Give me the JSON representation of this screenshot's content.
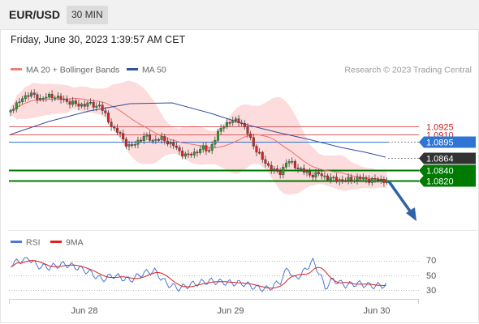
{
  "header": {
    "pair": "EUR/USD",
    "timeframe": "30 MIN"
  },
  "datetime": "Friday, June 30, 2023 1:39:57 AM CET",
  "legend": {
    "ma20": "MA 20 + Bollinger Bands",
    "ma50": "MA 50",
    "copyright": "Research © 2023 Trading Central"
  },
  "rsi_legend": {
    "rsi": "RSI",
    "ma9": "9MA"
  },
  "colors": {
    "up": "#2ca02c",
    "down": "#e02020",
    "resistance": "#e06060",
    "ma50": "#3050a0",
    "blue_tag": "#2e75d6",
    "green": "#007a00",
    "dark": "#333333",
    "bands": "#fbd6d6",
    "arrow": "#2f62a6"
  },
  "levels": [
    {
      "value": 1.0925,
      "label": "1.0925",
      "kind": "resistance"
    },
    {
      "value": 1.091,
      "label": "1.0910",
      "kind": "resistance"
    },
    {
      "value": 1.0895,
      "label": "1.0895",
      "kind": "pivot"
    },
    {
      "value": 1.0864,
      "label": "1.0864",
      "kind": "last"
    },
    {
      "value": 1.084,
      "label": "1.0840",
      "kind": "support"
    },
    {
      "value": 1.082,
      "label": "1.0820",
      "kind": "support"
    }
  ],
  "rsi_axis": {
    "ticks": [
      "70",
      "50",
      "30"
    ],
    "values": [
      70,
      50,
      30
    ]
  },
  "x_axis": {
    "labels": [
      "Jun 28",
      "Jun 29",
      "Jun 30"
    ]
  }
}
